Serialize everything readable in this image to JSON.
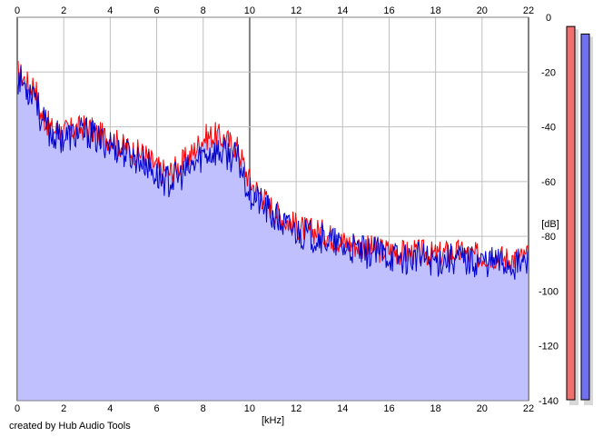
{
  "footer": {
    "credit": "created by Hub Audio Tools"
  },
  "chart_data": {
    "type": "area",
    "x_unit_label": "[kHz]",
    "y_unit_label": "[dB]",
    "xlim": [
      0,
      22
    ],
    "ylim": [
      -140,
      0
    ],
    "x_ticks": [
      "0",
      "2",
      "4",
      "6",
      "8",
      "10",
      "12",
      "14",
      "16",
      "18",
      "20",
      "22"
    ],
    "x_tick_values": [
      0,
      2,
      4,
      6,
      8,
      10,
      12,
      14,
      16,
      18,
      20,
      22
    ],
    "y_ticks": [
      "0",
      "-20",
      "-40",
      "-60",
      "-80",
      "-100",
      "-120",
      "-140"
    ],
    "y_tick_values": [
      0,
      -20,
      -40,
      -60,
      -80,
      -100,
      -120,
      -140
    ],
    "grid": true,
    "colors": {
      "left_channel": "#ff0000",
      "right_channel": "#0000cc",
      "fill": "#c0c0ff",
      "grid": "#c0c0c0",
      "major_grid": "#808080",
      "meter_left": "#f07070",
      "meter_right": "#7070f0"
    },
    "series": [
      {
        "channel": "left",
        "x": [
          0,
          0.25,
          0.5,
          0.75,
          1,
          1.5,
          2,
          2.5,
          3,
          3.5,
          4,
          4.5,
          5,
          5.5,
          6,
          6.5,
          7,
          7.5,
          8,
          8.5,
          9,
          9.5,
          10,
          10.5,
          11,
          11.5,
          12,
          12.5,
          13,
          13.5,
          14,
          14.5,
          15,
          15.5,
          16,
          16.5,
          17,
          17.5,
          18,
          18.5,
          19,
          19.5,
          20,
          20.5,
          21,
          21.5,
          22
        ],
        "y": [
          -20,
          -22,
          -25,
          -24,
          -35,
          -41,
          -42,
          -41,
          -40,
          -43,
          -44,
          -47,
          -49,
          -50,
          -55,
          -57,
          -54,
          -50,
          -44,
          -43,
          -45,
          -48,
          -60,
          -65,
          -70,
          -74,
          -76,
          -78,
          -78,
          -80,
          -82,
          -83,
          -84,
          -85,
          -85,
          -86,
          -86,
          -86,
          -87,
          -86,
          -86,
          -87,
          -87,
          -87,
          -88,
          -88,
          -88
        ]
      },
      {
        "channel": "right",
        "x": [
          0,
          0.25,
          0.5,
          0.75,
          1,
          1.5,
          2,
          2.5,
          3,
          3.5,
          4,
          4.5,
          5,
          5.5,
          6,
          6.5,
          7,
          7.5,
          8,
          8.5,
          9,
          9.5,
          10,
          10.5,
          11,
          11.5,
          12,
          12.5,
          13,
          13.5,
          14,
          14.5,
          15,
          15.5,
          16,
          16.5,
          17,
          17.5,
          18,
          18.5,
          19,
          19.5,
          20,
          20.5,
          21,
          21.5,
          22
        ],
        "y": [
          -22,
          -24,
          -27,
          -26,
          -37,
          -43,
          -44,
          -43,
          -42,
          -45,
          -46,
          -49,
          -51,
          -53,
          -58,
          -60,
          -58,
          -55,
          -50,
          -49,
          -50,
          -52,
          -64,
          -68,
          -73,
          -76,
          -78,
          -80,
          -80,
          -82,
          -84,
          -85,
          -86,
          -86,
          -87,
          -88,
          -88,
          -88,
          -89,
          -88,
          -88,
          -89,
          -89,
          -89,
          -90,
          -90,
          -90
        ]
      }
    ],
    "meters": {
      "left": 0.99,
      "right": 0.97
    }
  }
}
